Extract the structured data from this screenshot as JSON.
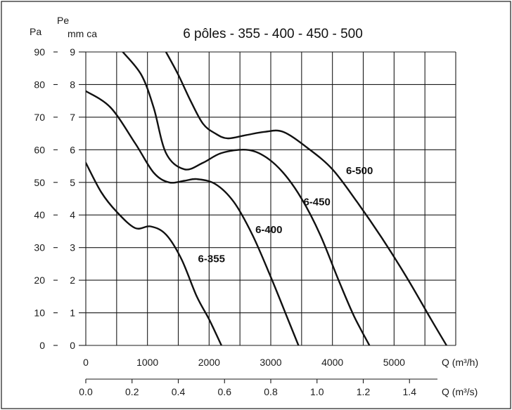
{
  "chart_data": {
    "type": "line",
    "title": "6 pôles - 355 - 400 - 450 - 500",
    "x_unit": "Q (m³/h)",
    "x2_unit": "Q (m³/s)",
    "y_unit_pa": "Pa",
    "y_unit_mmca_line1": "Pe",
    "y_unit_mmca_line2": "mm ca",
    "xlim": [
      0,
      6000
    ],
    "ylim_pa": [
      0,
      90
    ],
    "ylim_mmca": [
      0,
      9
    ],
    "grid": true,
    "x_ticks": [
      "0",
      "1000",
      "2000",
      "3000",
      "4000",
      "5000"
    ],
    "x2_ticks": [
      "0.0",
      "0.2",
      "0.4",
      "0.6",
      "0.8",
      "1.0",
      "1.2",
      "1.4"
    ],
    "x2_tick_values": [
      0,
      0.2,
      0.4,
      0.6,
      0.8,
      1.0,
      1.2,
      1.4
    ],
    "y_ticks_pa": [
      "0",
      "10",
      "20",
      "30",
      "40",
      "50",
      "60",
      "70",
      "80",
      "90"
    ],
    "y_ticks_mmca": [
      "0",
      "1",
      "2",
      "3",
      "4",
      "5",
      "6",
      "7",
      "8",
      "9"
    ],
    "series": [
      {
        "name": "6-355",
        "x": [
          0,
          250,
          500,
          800,
          1050,
          1300,
          1550,
          1800,
          2000,
          2200
        ],
        "y": [
          5.6,
          4.7,
          4.1,
          3.6,
          3.65,
          3.4,
          2.65,
          1.5,
          0.8,
          0
        ],
        "label_at": [
          1820,
          2.55
        ]
      },
      {
        "name": "6-400",
        "x": [
          0,
          400,
          800,
          1100,
          1350,
          1600,
          1800,
          2100,
          2400,
          2700,
          3000,
          3300,
          3450
        ],
        "y": [
          7.8,
          7.3,
          6.2,
          5.3,
          5.0,
          5.05,
          5.1,
          4.95,
          4.4,
          3.4,
          2.1,
          0.7,
          0
        ],
        "label_at": [
          2750,
          3.45
        ]
      },
      {
        "name": "6-450",
        "x": [
          600,
          900,
          1100,
          1300,
          1600,
          1900,
          2200,
          2600,
          2900,
          3200,
          3500,
          3800,
          4100,
          4350,
          4600
        ],
        "y": [
          9.0,
          8.3,
          7.3,
          5.9,
          5.4,
          5.6,
          5.9,
          6.0,
          5.8,
          5.3,
          4.5,
          3.4,
          2.0,
          0.9,
          0
        ],
        "label_at": [
          3530,
          4.3
        ]
      },
      {
        "name": "6-500",
        "x": [
          1300,
          1500,
          1700,
          1900,
          2100,
          2300,
          2600,
          2900,
          3200,
          3600,
          4000,
          4400,
          4800,
          5200,
          5600,
          5850
        ],
        "y": [
          9.0,
          8.3,
          7.5,
          6.8,
          6.5,
          6.35,
          6.45,
          6.55,
          6.55,
          6.05,
          5.4,
          4.4,
          3.3,
          2.1,
          0.8,
          0
        ],
        "label_at": [
          4220,
          5.25
        ]
      }
    ]
  }
}
